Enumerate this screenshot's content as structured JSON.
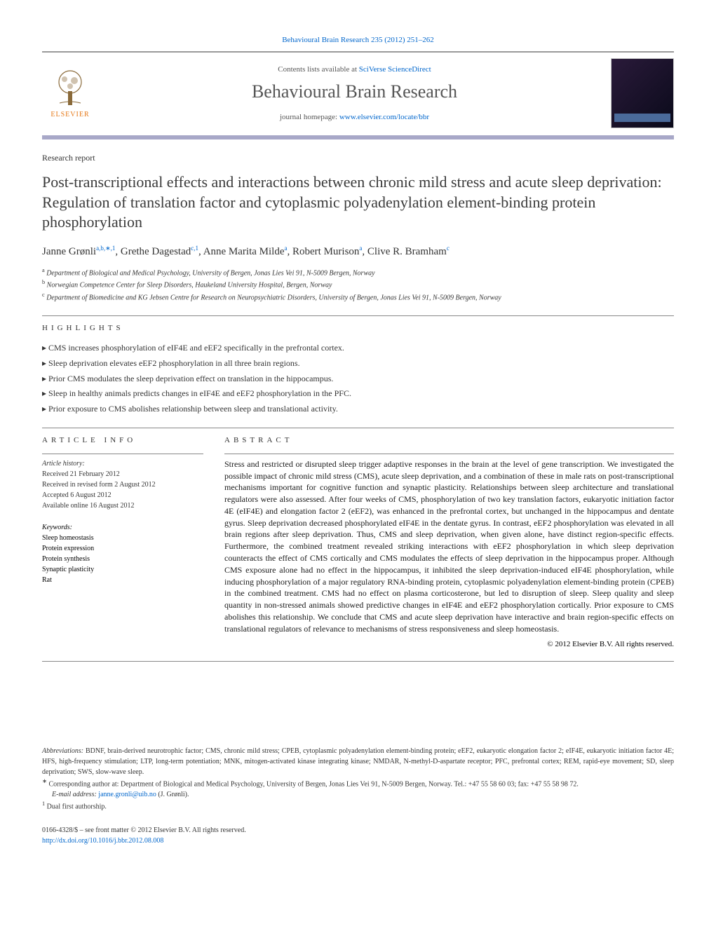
{
  "header": {
    "citation": "Behavioural Brain Research 235 (2012) 251–262",
    "contents_prefix": "Contents lists available at ",
    "contents_link": "SciVerse ScienceDirect",
    "journal": "Behavioural Brain Research",
    "homepage_prefix": "journal homepage: ",
    "homepage_link": "www.elsevier.com/locate/bbr",
    "publisher_logo_text": "ELSEVIER"
  },
  "article": {
    "type": "Research report",
    "title": "Post-transcriptional effects and interactions between chronic mild stress and acute sleep deprivation: Regulation of translation factor and cytoplasmic polyadenylation element-binding protein phosphorylation",
    "authors_html": "Janne Grønli",
    "authors": [
      {
        "name": "Janne Grønli",
        "marks": "a,b,∗,1"
      },
      {
        "name": "Grethe Dagestad",
        "marks": "c,1"
      },
      {
        "name": "Anne Marita Milde",
        "marks": "a"
      },
      {
        "name": "Robert Murison",
        "marks": "a"
      },
      {
        "name": "Clive R. Bramham",
        "marks": "c"
      }
    ],
    "affiliations": [
      {
        "mark": "a",
        "text": "Department of Biological and Medical Psychology, University of Bergen, Jonas Lies Vei 91, N-5009 Bergen, Norway"
      },
      {
        "mark": "b",
        "text": "Norwegian Competence Center for Sleep Disorders, Haukeland University Hospital, Bergen, Norway"
      },
      {
        "mark": "c",
        "text": "Department of Biomedicine and KG Jebsen Centre for Research on Neuropsychiatric Disorders, University of Bergen, Jonas Lies Vei 91, N-5009 Bergen, Norway"
      }
    ]
  },
  "highlights": {
    "heading": "HIGHLIGHTS",
    "items": [
      "CMS increases phosphorylation of eIF4E and eEF2 specifically in the prefrontal cortex.",
      "Sleep deprivation elevates eEF2 phosphorylation in all three brain regions.",
      "Prior CMS modulates the sleep deprivation effect on translation in the hippocampus.",
      "Sleep in healthy animals predicts changes in eIF4E and eEF2 phosphorylation in the PFC.",
      "Prior exposure to CMS abolishes relationship between sleep and translational activity."
    ]
  },
  "article_info": {
    "heading": "ARTICLE INFO",
    "history_label": "Article history:",
    "received": "Received 21 February 2012",
    "revised": "Received in revised form 2 August 2012",
    "accepted": "Accepted 6 August 2012",
    "online": "Available online 16 August 2012",
    "keywords_label": "Keywords:",
    "keywords": [
      "Sleep homeostasis",
      "Protein expression",
      "Protein synthesis",
      "Synaptic plasticity",
      "Rat"
    ]
  },
  "abstract": {
    "heading": "ABSTRACT",
    "text": "Stress and restricted or disrupted sleep trigger adaptive responses in the brain at the level of gene transcription. We investigated the possible impact of chronic mild stress (CMS), acute sleep deprivation, and a combination of these in male rats on post-transcriptional mechanisms important for cognitive function and synaptic plasticity. Relationships between sleep architecture and translational regulators were also assessed. After four weeks of CMS, phosphorylation of two key translation factors, eukaryotic initiation factor 4E (eIF4E) and elongation factor 2 (eEF2), was enhanced in the prefrontal cortex, but unchanged in the hippocampus and dentate gyrus. Sleep deprivation decreased phosphorylated eIF4E in the dentate gyrus. In contrast, eEF2 phosphorylation was elevated in all brain regions after sleep deprivation. Thus, CMS and sleep deprivation, when given alone, have distinct region-specific effects. Furthermore, the combined treatment revealed striking interactions with eEF2 phosphorylation in which sleep deprivation counteracts the effect of CMS cortically and CMS modulates the effects of sleep deprivation in the hippocampus proper. Although CMS exposure alone had no effect in the hippocampus, it inhibited the sleep deprivation-induced eIF4E phosphorylation, while inducing phosphorylation of a major regulatory RNA-binding protein, cytoplasmic polyadenylation element-binding protein (CPEB) in the combined treatment. CMS had no effect on plasma corticosterone, but led to disruption of sleep. Sleep quality and sleep quantity in non-stressed animals showed predictive changes in eIF4E and eEF2 phosphorylation cortically. Prior exposure to CMS abolishes this relationship. We conclude that CMS and acute sleep deprivation have interactive and brain region-specific effects on translational regulators of relevance to mechanisms of stress responsiveness and sleep homeostasis.",
    "copyright": "© 2012 Elsevier B.V. All rights reserved."
  },
  "footer": {
    "abbrev_label": "Abbreviations:",
    "abbrev_text": "BDNF, brain-derived neurotrophic factor; CMS, chronic mild stress; CPEB, cytoplasmic polyadenylation element-binding protein; eEF2, eukaryotic elongation factor 2; eIF4E, eukaryotic initiation factor 4E; HFS, high-frequency stimulation; LTP, long-term potentiation; MNK, mitogen-activated kinase integrating kinase; NMDAR, N-methyl-D-aspartate receptor; PFC, prefrontal cortex; REM, rapid-eye movement; SD, sleep deprivation; SWS, slow-wave sleep.",
    "corresponding_mark": "∗",
    "corresponding_text": "Corresponding author at: Department of Biological and Medical Psychology, University of Bergen, Jonas Lies Vei 91, N-5009 Bergen, Norway. Tel.: +47 55 58 60 03; fax: +47 55 58 98 72.",
    "email_label": "E-mail address:",
    "email": "janne.gronli@uib.no",
    "email_suffix": "(J. Grønli).",
    "dual_mark": "1",
    "dual_text": "Dual first authorship.",
    "issn_line": "0166-4328/$ – see front matter © 2012 Elsevier B.V. All rights reserved.",
    "doi": "http://dx.doi.org/10.1016/j.bbr.2012.08.008"
  },
  "colors": {
    "link": "#0066cc",
    "divider_thick": "#a8a8c8",
    "logo_orange": "#e67817",
    "text_gray": "#555555"
  }
}
